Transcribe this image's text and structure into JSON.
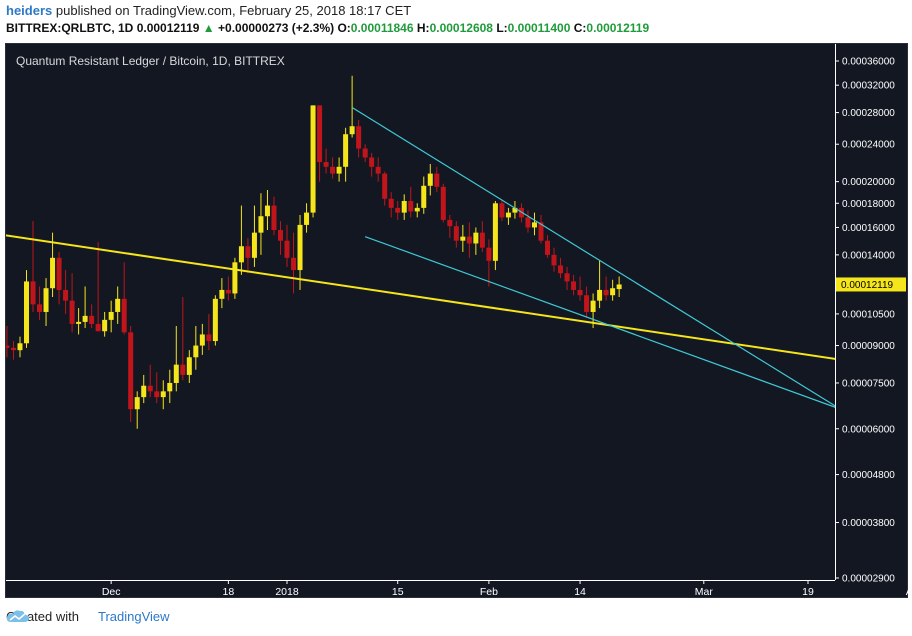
{
  "header": {
    "author": "heiders",
    "published_text": "published on TradingView.com, February 25, 2018 18:17 CET"
  },
  "quote": {
    "symbol": "BITTREX:QRLBTC, 1D",
    "last": "0.00012119",
    "change": "+0.00000273 (+2.3%)",
    "o_label": "O:",
    "o": "0.00011846",
    "h_label": "H:",
    "h": "0.00012608",
    "l_label": "L:",
    "l": "0.00011400",
    "c_label": "C:",
    "c": "0.00012119"
  },
  "footer": {
    "created_with": "Created with",
    "brand": "TradingView"
  },
  "colors": {
    "bg": "#131722",
    "up": "#f5e51b",
    "down": "#c1151b",
    "trend": "#f5e51b",
    "wedge": "#3fc9d6",
    "axis": "#ffffff",
    "price_tag": "#f5e51b"
  },
  "chart_data": {
    "type": "candlestick",
    "title": "Quantum Resistant Ledger / Bitcoin, 1D, BITTREX",
    "y_scale": "log",
    "ylim": [
      2e-05,
      0.00037
    ],
    "y_ticks": [
      "0.00036000",
      "0.00032000",
      "0.00028000",
      "0.00024000",
      "0.00020000",
      "0.00018000",
      "0.00016000",
      "0.00014000",
      "0.00010500",
      "0.00009000",
      "0.00007500",
      "0.00006000",
      "0.00004800",
      "0.00003800",
      "0.00002900"
    ],
    "x_ticks": [
      "Dec",
      "18",
      "2018",
      "15",
      "Feb",
      "14",
      "Mar",
      "19",
      "Ap"
    ],
    "x_tick_days": [
      -27,
      -9,
      0,
      17,
      31,
      45,
      64,
      80,
      96
    ],
    "x_range_days": [
      -46,
      98
    ],
    "last_price": "0.00012119",
    "candles": [
      {
        "d": -45,
        "o": 9.95e-05,
        "h": 0.0001045,
        "l": 8.6e-05,
        "c": 8.7e-05
      },
      {
        "d": -44,
        "o": 8.7e-05,
        "h": 9.3e-05,
        "l": 8.4e-05,
        "c": 9e-05
      },
      {
        "d": -43,
        "o": 9e-05,
        "h": 9.9e-05,
        "l": 8.5e-05,
        "c": 8.9e-05
      },
      {
        "d": -42,
        "o": 8.9e-05,
        "h": 9.2e-05,
        "l": 8.4e-05,
        "c": 8.8e-05
      },
      {
        "d": -41,
        "o": 8.8e-05,
        "h": 9.4e-05,
        "l": 8.5e-05,
        "c": 9.1e-05
      },
      {
        "d": -40,
        "o": 9.1e-05,
        "h": 0.00013,
        "l": 8.9e-05,
        "c": 0.000123
      },
      {
        "d": -39,
        "o": 0.000123,
        "h": 0.000165,
        "l": 0.000106,
        "c": 0.00011
      },
      {
        "d": -38,
        "o": 0.00011,
        "h": 0.00012,
        "l": 0.000102,
        "c": 0.000106
      },
      {
        "d": -37,
        "o": 0.000106,
        "h": 0.000125,
        "l": 9.9e-05,
        "c": 0.000119
      },
      {
        "d": -36,
        "o": 0.000119,
        "h": 0.000156,
        "l": 0.000114,
        "c": 0.000138
      },
      {
        "d": -35,
        "o": 0.000138,
        "h": 0.000142,
        "l": 0.00011,
        "c": 0.000118
      },
      {
        "d": -34,
        "o": 0.000118,
        "h": 0.00013,
        "l": 0.000105,
        "c": 0.000112
      },
      {
        "d": -33,
        "o": 0.000112,
        "h": 0.000128,
        "l": 9.6e-05,
        "c": 0.0001
      },
      {
        "d": -32,
        "o": 0.0001,
        "h": 0.000108,
        "l": 9.5e-05,
        "c": 0.000101
      },
      {
        "d": -31,
        "o": 0.000101,
        "h": 0.00012,
        "l": 9.8e-05,
        "c": 0.000104
      },
      {
        "d": -30,
        "o": 0.000104,
        "h": 0.00011,
        "l": 9.8e-05,
        "c": 0.0001
      },
      {
        "d": -29,
        "o": 0.0001,
        "h": 0.000149,
        "l": 9.9e-05,
        "c": 9.65e-05
      },
      {
        "d": -28,
        "o": 9.65e-05,
        "h": 0.000106,
        "l": 9.4e-05,
        "c": 0.000102
      },
      {
        "d": -27,
        "o": 0.000102,
        "h": 0.000112,
        "l": 9.6e-05,
        "c": 0.000106
      },
      {
        "d": -26,
        "o": 0.000106,
        "h": 0.00012,
        "l": 0.0001,
        "c": 0.000113
      },
      {
        "d": -25,
        "o": 0.000113,
        "h": 0.000135,
        "l": 9.5e-05,
        "c": 9.6e-05
      },
      {
        "d": -24,
        "o": 9.6e-05,
        "h": 9.9e-05,
        "l": 6.2e-05,
        "c": 6.6e-05
      },
      {
        "d": -23,
        "o": 6.6e-05,
        "h": 7.2e-05,
        "l": 6e-05,
        "c": 7e-05
      },
      {
        "d": -22,
        "o": 7e-05,
        "h": 7.8e-05,
        "l": 6.8e-05,
        "c": 7.4e-05
      },
      {
        "d": -21,
        "o": 7.4e-05,
        "h": 8.2e-05,
        "l": 7e-05,
        "c": 7.2e-05
      },
      {
        "d": -20,
        "o": 7.2e-05,
        "h": 7.9e-05,
        "l": 6.8e-05,
        "c": 7e-05
      },
      {
        "d": -19,
        "o": 7e-05,
        "h": 7.6e-05,
        "l": 6.6e-05,
        "c": 7.2e-05
      },
      {
        "d": -18,
        "o": 7.2e-05,
        "h": 8e-05,
        "l": 6.8e-05,
        "c": 7.5e-05
      },
      {
        "d": -17,
        "o": 7.5e-05,
        "h": 9.9e-05,
        "l": 7.2e-05,
        "c": 8.2e-05
      },
      {
        "d": -16,
        "o": 8.2e-05,
        "h": 0.000114,
        "l": 7.6e-05,
        "c": 7.8e-05
      },
      {
        "d": -15,
        "o": 7.8e-05,
        "h": 8.8e-05,
        "l": 7.5e-05,
        "c": 8.5e-05
      },
      {
        "d": -14,
        "o": 8.5e-05,
        "h": 9.9e-05,
        "l": 8e-05,
        "c": 9e-05
      },
      {
        "d": -13,
        "o": 9e-05,
        "h": 0.0001,
        "l": 8.6e-05,
        "c": 9.5e-05
      },
      {
        "d": -12,
        "o": 9.5e-05,
        "h": 0.000105,
        "l": 8.8e-05,
        "c": 9.2e-05
      },
      {
        "d": -11,
        "o": 9.2e-05,
        "h": 0.000115,
        "l": 9e-05,
        "c": 0.000113
      },
      {
        "d": -10,
        "o": 0.000113,
        "h": 0.000125,
        "l": 0.000108,
        "c": 0.000118
      },
      {
        "d": -9,
        "o": 0.000118,
        "h": 0.000126,
        "l": 0.000112,
        "c": 0.000116
      },
      {
        "d": -8,
        "o": 0.000116,
        "h": 0.000138,
        "l": 0.000113,
        "c": 0.000135
      },
      {
        "d": -7,
        "o": 0.000135,
        "h": 0.000178,
        "l": 0.000127,
        "c": 0.000146
      },
      {
        "d": -6,
        "o": 0.000146,
        "h": 0.000152,
        "l": 0.000128,
        "c": 0.000138
      },
      {
        "d": -5,
        "o": 0.000138,
        "h": 0.000178,
        "l": 0.000132,
        "c": 0.000156
      },
      {
        "d": -4,
        "o": 0.000156,
        "h": 0.000189,
        "l": 0.00014,
        "c": 0.000169
      },
      {
        "d": -3,
        "o": 0.000169,
        "h": 0.000192,
        "l": 0.000158,
        "c": 0.000178
      },
      {
        "d": -2,
        "o": 0.000178,
        "h": 0.000186,
        "l": 0.000154,
        "c": 0.000158
      },
      {
        "d": -1,
        "o": 0.000158,
        "h": 0.000165,
        "l": 0.00014,
        "c": 0.00015
      },
      {
        "d": 0,
        "o": 0.00015,
        "h": 0.000162,
        "l": 0.000132,
        "c": 0.000138
      },
      {
        "d": 1,
        "o": 0.000138,
        "h": 0.000156,
        "l": 0.000116,
        "c": 0.00013
      },
      {
        "d": 2,
        "o": 0.00013,
        "h": 0.00017,
        "l": 0.000118,
        "c": 0.000162
      },
      {
        "d": 3,
        "o": 0.000162,
        "h": 0.00018,
        "l": 0.000156,
        "c": 0.000172
      },
      {
        "d": 4,
        "o": 0.000172,
        "h": 0.00029,
        "l": 0.000168,
        "c": 0.00029
      },
      {
        "d": 5,
        "o": 0.00029,
        "h": 0.00029,
        "l": 0.0002,
        "c": 0.00022
      },
      {
        "d": 6,
        "o": 0.00022,
        "h": 0.000235,
        "l": 0.000208,
        "c": 0.000215
      },
      {
        "d": 7,
        "o": 0.000215,
        "h": 0.000225,
        "l": 0.000203,
        "c": 0.000208
      },
      {
        "d": 8,
        "o": 0.000208,
        "h": 0.000225,
        "l": 0.0002,
        "c": 0.000215
      },
      {
        "d": 9,
        "o": 0.000215,
        "h": 0.00026,
        "l": 0.0002,
        "c": 0.000252
      },
      {
        "d": 10,
        "o": 0.000252,
        "h": 0.000335,
        "l": 0.000248,
        "c": 0.000262
      },
      {
        "d": 11,
        "o": 0.000262,
        "h": 0.00027,
        "l": 0.000225,
        "c": 0.000235
      },
      {
        "d": 12,
        "o": 0.000235,
        "h": 0.00024,
        "l": 0.00022,
        "c": 0.000225
      },
      {
        "d": 13,
        "o": 0.000225,
        "h": 0.00023,
        "l": 0.000205,
        "c": 0.000215
      },
      {
        "d": 14,
        "o": 0.000215,
        "h": 0.000225,
        "l": 0.0002,
        "c": 0.000208
      },
      {
        "d": 15,
        "o": 0.000208,
        "h": 0.00021,
        "l": 0.000178,
        "c": 0.000184
      },
      {
        "d": 16,
        "o": 0.000184,
        "h": 0.00019,
        "l": 0.000168,
        "c": 0.000176
      },
      {
        "d": 17,
        "o": 0.000176,
        "h": 0.000182,
        "l": 0.000166,
        "c": 0.000172
      },
      {
        "d": 18,
        "o": 0.000172,
        "h": 0.000188,
        "l": 0.000166,
        "c": 0.000182
      },
      {
        "d": 19,
        "o": 0.000182,
        "h": 0.000195,
        "l": 0.000168,
        "c": 0.000173
      },
      {
        "d": 20,
        "o": 0.000173,
        "h": 0.00018,
        "l": 0.000168,
        "c": 0.000176
      },
      {
        "d": 21,
        "o": 0.000176,
        "h": 0.000205,
        "l": 0.000171,
        "c": 0.000196
      },
      {
        "d": 22,
        "o": 0.000196,
        "h": 0.000218,
        "l": 0.000187,
        "c": 0.000208
      },
      {
        "d": 23,
        "o": 0.000208,
        "h": 0.000215,
        "l": 0.00019,
        "c": 0.000195
      },
      {
        "d": 24,
        "o": 0.000195,
        "h": 0.000198,
        "l": 0.000164,
        "c": 0.000166
      },
      {
        "d": 25,
        "o": 0.000166,
        "h": 0.00017,
        "l": 0.000152,
        "c": 0.000161
      },
      {
        "d": 26,
        "o": 0.000161,
        "h": 0.000165,
        "l": 0.000145,
        "c": 0.00015
      },
      {
        "d": 27,
        "o": 0.00015,
        "h": 0.000162,
        "l": 0.000142,
        "c": 0.000153
      },
      {
        "d": 28,
        "o": 0.000153,
        "h": 0.000164,
        "l": 0.000138,
        "c": 0.000148
      },
      {
        "d": 29,
        "o": 0.000148,
        "h": 0.00016,
        "l": 0.00014,
        "c": 0.000156
      },
      {
        "d": 30,
        "o": 0.000156,
        "h": 0.000165,
        "l": 0.000142,
        "c": 0.000145
      },
      {
        "d": 31,
        "o": 0.000145,
        "h": 0.000151,
        "l": 0.00012,
        "c": 0.000136
      },
      {
        "d": 32,
        "o": 0.000136,
        "h": 0.000182,
        "l": 0.00013,
        "c": 0.00018
      },
      {
        "d": 33,
        "o": 0.00018,
        "h": 0.000183,
        "l": 0.000165,
        "c": 0.000168
      },
      {
        "d": 34,
        "o": 0.000168,
        "h": 0.000176,
        "l": 0.000162,
        "c": 0.000172
      },
      {
        "d": 35,
        "o": 0.000172,
        "h": 0.000182,
        "l": 0.000167,
        "c": 0.000176
      },
      {
        "d": 36,
        "o": 0.000176,
        "h": 0.00018,
        "l": 0.000164,
        "c": 0.000168
      },
      {
        "d": 37,
        "o": 0.000168,
        "h": 0.000174,
        "l": 0.000156,
        "c": 0.00016
      },
      {
        "d": 38,
        "o": 0.00016,
        "h": 0.000172,
        "l": 0.000154,
        "c": 0.000164
      },
      {
        "d": 39,
        "o": 0.000164,
        "h": 0.00017,
        "l": 0.000148,
        "c": 0.00015
      },
      {
        "d": 40,
        "o": 0.00015,
        "h": 0.000154,
        "l": 0.000138,
        "c": 0.00014
      },
      {
        "d": 41,
        "o": 0.00014,
        "h": 0.000145,
        "l": 0.000129,
        "c": 0.000133
      },
      {
        "d": 42,
        "o": 0.000133,
        "h": 0.000138,
        "l": 0.000125,
        "c": 0.000128
      },
      {
        "d": 43,
        "o": 0.000128,
        "h": 0.000132,
        "l": 0.000118,
        "c": 0.000123
      },
      {
        "d": 44,
        "o": 0.000123,
        "h": 0.000127,
        "l": 0.000115,
        "c": 0.000118
      },
      {
        "d": 45,
        "o": 0.000118,
        "h": 0.000126,
        "l": 0.000112,
        "c": 0.000115
      },
      {
        "d": 46,
        "o": 0.000115,
        "h": 0.00012,
        "l": 0.000103,
        "c": 0.000106
      },
      {
        "d": 47,
        "o": 0.000106,
        "h": 0.000116,
        "l": 9.8e-05,
        "c": 0.000112
      },
      {
        "d": 48,
        "o": 0.000112,
        "h": 0.000136,
        "l": 0.000108,
        "c": 0.000118
      },
      {
        "d": 49,
        "o": 0.000118,
        "h": 0.000126,
        "l": 0.000112,
        "c": 0.000115
      },
      {
        "d": 50,
        "o": 0.000115,
        "h": 0.000124,
        "l": 0.000112,
        "c": 0.000119
      },
      {
        "d": 51,
        "o": 0.0001185,
        "h": 0.000126,
        "l": 0.000114,
        "c": 0.0001212
      }
    ],
    "trendlines": [
      {
        "name": "support",
        "color": "yellow",
        "p1": {
          "d": -46,
          "v": 0.000156
        },
        "p2": {
          "d": 98,
          "v": 7.9e-05
        }
      },
      {
        "name": "wedge-upper",
        "color": "cyan",
        "p1": {
          "d": 10,
          "v": 0.000287
        },
        "p2": {
          "d": 85,
          "v": 6.6e-05
        }
      },
      {
        "name": "wedge-lower",
        "color": "cyan",
        "p1": {
          "d": 12,
          "v": 0.000153
        },
        "p2": {
          "d": 85,
          "v": 6.6e-05
        }
      }
    ]
  }
}
